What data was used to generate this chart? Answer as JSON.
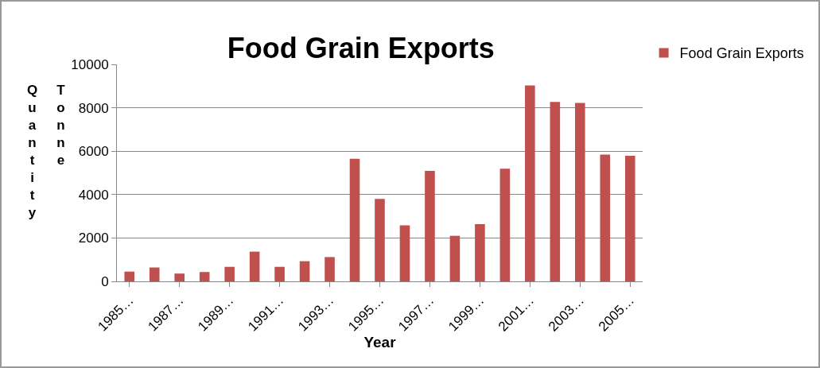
{
  "chart_data": {
    "type": "bar",
    "title": "Food Grain Exports",
    "xlabel": "Year",
    "ylabel": "Quantity Tonne",
    "categories": [
      "1985…",
      null,
      "1987…",
      null,
      "1989…",
      null,
      "1991…",
      null,
      "1993…",
      null,
      "1995…",
      null,
      "1997…",
      null,
      "1999…",
      null,
      "2001…",
      null,
      "2003…",
      null,
      "2005…"
    ],
    "series": [
      {
        "name": "Food Grain Exports",
        "color": "#c0504d",
        "values": [
          450,
          640,
          360,
          430,
          670,
          1370,
          670,
          930,
          1120,
          5650,
          3800,
          2580,
          5090,
          2100,
          2640,
          5190,
          9030,
          8270,
          8220,
          5840,
          5790
        ]
      }
    ],
    "ylim": [
      0,
      10000
    ],
    "yticks": [
      0,
      2000,
      4000,
      6000,
      8000,
      10000
    ],
    "grid": "y",
    "legend": "top right"
  }
}
